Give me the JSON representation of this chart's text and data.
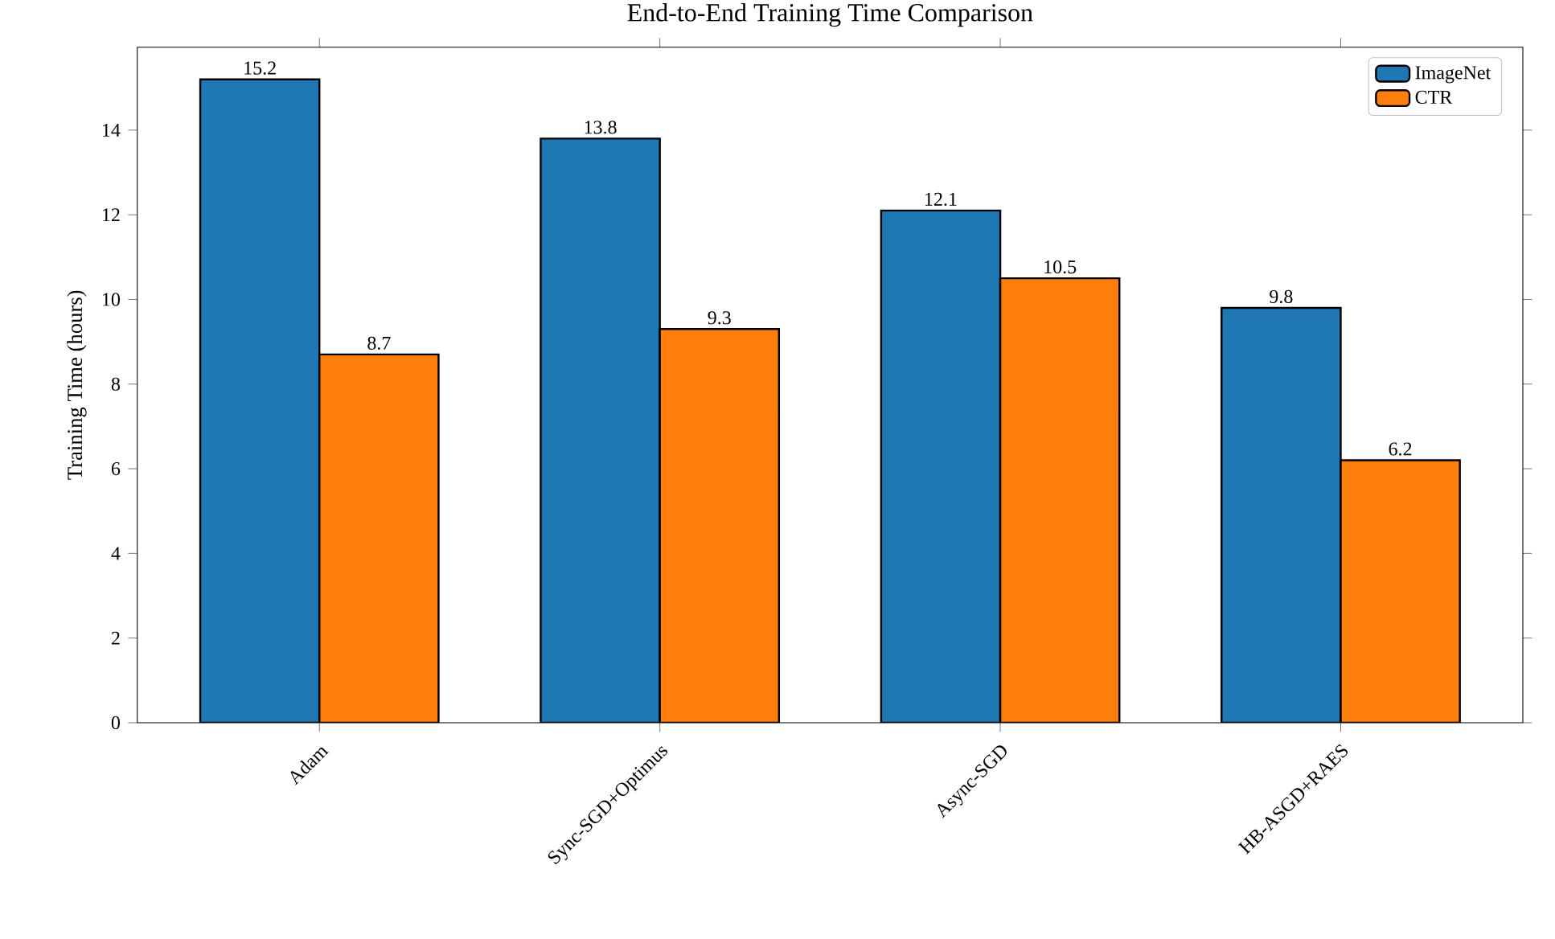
{
  "chart_data": {
    "type": "bar",
    "title": "End-to-End Training Time Comparison",
    "ylabel": "Training Time (hours)",
    "categories": [
      "Adam",
      "Sync-SGD+Optimus",
      "Async-SGD",
      "HB-ASGD+RAES"
    ],
    "series": [
      {
        "name": "ImageNet",
        "color": "#1f77b4",
        "values": [
          15.2,
          13.8,
          12.1,
          9.8
        ]
      },
      {
        "name": "CTR",
        "color": "#ff7f0e",
        "values": [
          8.7,
          9.3,
          10.5,
          6.2
        ]
      }
    ],
    "ylim": [
      0,
      15.96
    ],
    "yticks": [
      0,
      2,
      4,
      6,
      8,
      10,
      12,
      14
    ],
    "data_labels": true,
    "legend": "top right",
    "grid": false
  }
}
